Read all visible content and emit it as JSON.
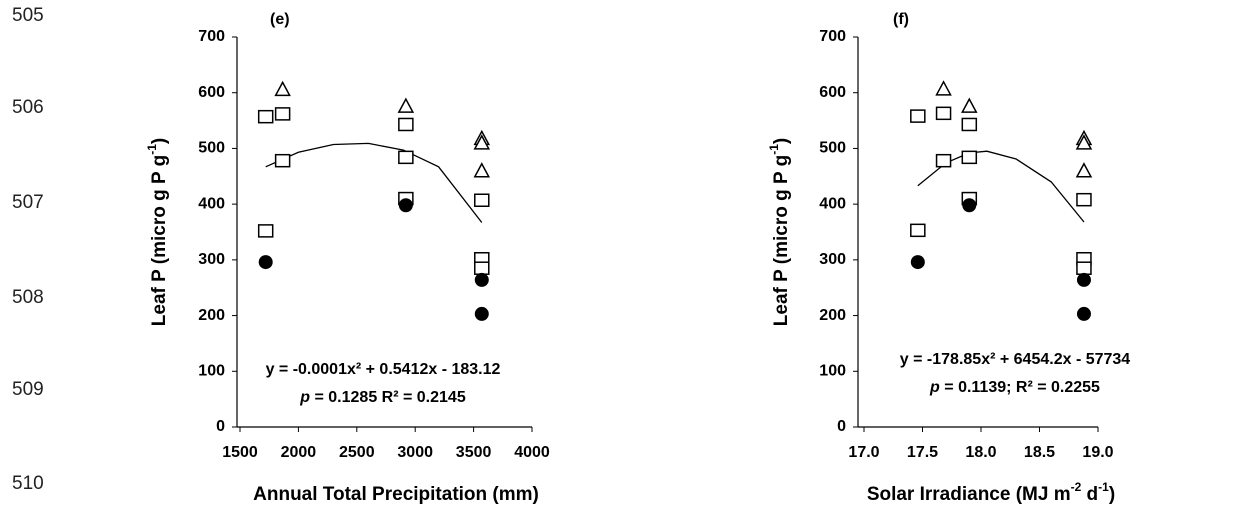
{
  "line_numbers": [
    "505",
    "506",
    "507",
    "508",
    "509",
    "510"
  ],
  "chart_data": [
    {
      "type": "scatter",
      "panel_label": "(e)",
      "x_label": "Annual Total Precipitation (mm)",
      "y_label": [
        "Leaf P (micro g P g",
        "-1",
        ")"
      ],
      "equation": "y = -0.0001x² + 0.5412x - 183.12",
      "stats": [
        "p",
        " = 0.1285 R² = 0.2145"
      ],
      "xlim": [
        1500,
        4000
      ],
      "xticks": [
        1500,
        2000,
        2500,
        3000,
        3500,
        4000
      ],
      "ylim": [
        0,
        700
      ],
      "yticks": [
        0,
        100,
        200,
        300,
        400,
        500,
        600,
        700
      ],
      "series": [
        {
          "marker": "square",
          "color": "#000",
          "x": [
            1720,
            1720,
            1865,
            1865,
            2920,
            2920,
            2920,
            3570,
            3570,
            3570
          ],
          "values": [
            557,
            352,
            562,
            478,
            543,
            484,
            410,
            407,
            302,
            285
          ]
        },
        {
          "marker": "triangle",
          "color": "#000",
          "x": [
            1865,
            2920,
            3570,
            3570,
            3570
          ],
          "values": [
            606,
            576,
            518,
            510,
            460
          ]
        },
        {
          "marker": "circle",
          "color": "#000",
          "x": [
            1720,
            2920,
            3570,
            3570
          ],
          "values": [
            296,
            398,
            264,
            203
          ]
        }
      ],
      "fit": {
        "color": "#000",
        "x": [
          1720,
          2000,
          2300,
          2600,
          2900,
          3200,
          3570
        ],
        "values": [
          467,
          493,
          507,
          509,
          497,
          467,
          367
        ]
      }
    },
    {
      "type": "scatter",
      "panel_label": "(f)",
      "x_label": [
        "Solar Irradiance (MJ m",
        "-2",
        " d",
        "-1",
        ")"
      ],
      "y_label": [
        "Leaf P (micro g P g",
        "-1",
        ")"
      ],
      "equation": "y = -178.85x² + 6454.2x - 57734",
      "stats": [
        "p",
        " = 0.1139; R² = 0.2255"
      ],
      "xlim": [
        17.0,
        19.0
      ],
      "xticks": [
        {
          "value": 17,
          "label": "17.0"
        },
        17.5,
        {
          "value": 18,
          "label": "18.0"
        },
        18.5,
        {
          "value": 19,
          "label": "19.0"
        }
      ],
      "ylim": [
        0,
        700
      ],
      "yticks": [
        0,
        100,
        200,
        300,
        400,
        500,
        600,
        700
      ],
      "series": [
        {
          "marker": "square",
          "color": "#000",
          "x": [
            17.46,
            17.46,
            17.68,
            17.68,
            17.9,
            17.9,
            17.9,
            18.88,
            18.88,
            18.88
          ],
          "values": [
            558,
            353,
            563,
            478,
            543,
            484,
            410,
            408,
            302,
            285
          ]
        },
        {
          "marker": "triangle",
          "color": "#000",
          "x": [
            17.68,
            17.9,
            18.88,
            18.88,
            18.88
          ],
          "values": [
            607,
            576,
            518,
            510,
            460
          ]
        },
        {
          "marker": "circle",
          "color": "#000",
          "x": [
            17.46,
            17.9,
            18.88,
            18.88
          ],
          "values": [
            296,
            398,
            264,
            203
          ]
        }
      ],
      "fit": {
        "color": "#000",
        "x": [
          17.46,
          17.7,
          17.9,
          18.05,
          18.3,
          18.6,
          18.88
        ],
        "values": [
          433,
          474,
          492,
          495,
          481,
          440,
          368
        ]
      }
    }
  ]
}
